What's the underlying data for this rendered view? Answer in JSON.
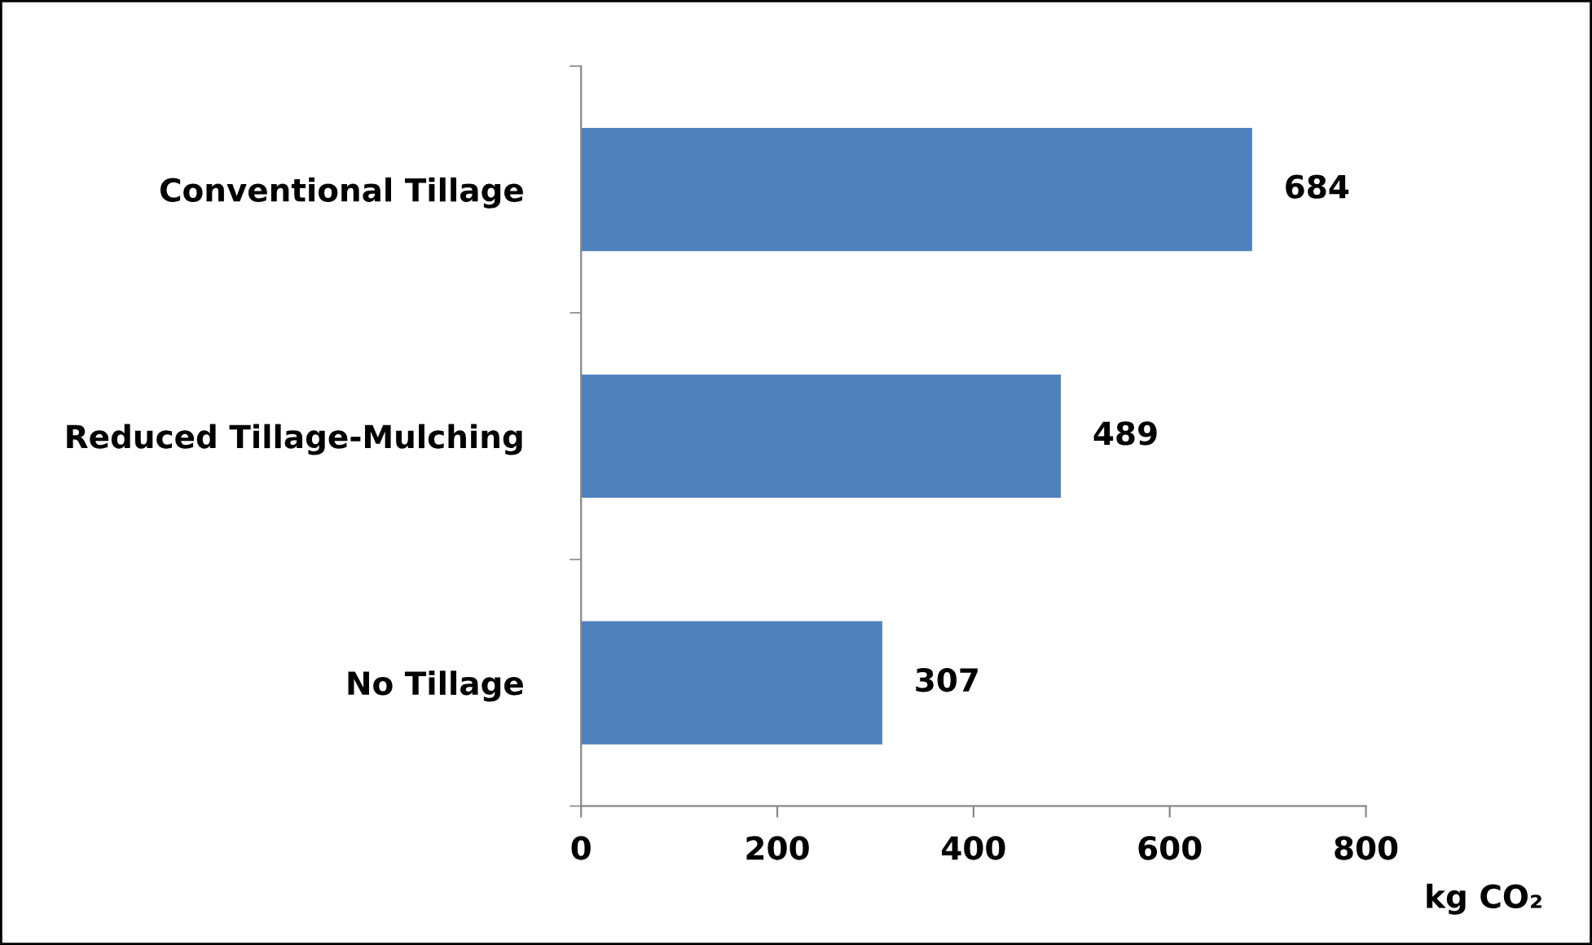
{
  "chart_data": {
    "type": "bar",
    "orientation": "horizontal",
    "categories": [
      "Conventional Tillage",
      "Reduced Tillage-Mulching",
      "No Tillage"
    ],
    "values": [
      684,
      489,
      307
    ],
    "color": "#4f81bd",
    "xlim": [
      0,
      800
    ],
    "xticks": [
      0,
      200,
      400,
      600,
      800
    ],
    "xlabel": "kg CO₂",
    "data_labels": true,
    "grid": false,
    "legend": false
  }
}
